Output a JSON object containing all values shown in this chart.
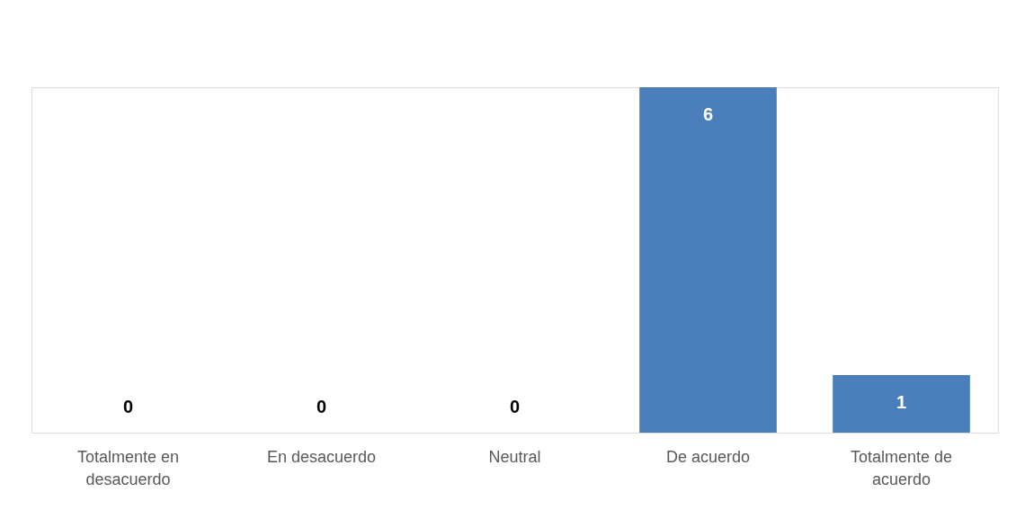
{
  "chart_data": {
    "type": "bar",
    "categories": [
      "Totalmente en desacuerdo",
      "En desacuerdo",
      "Neutral",
      "De acuerdo",
      "Totalmente de acuerdo"
    ],
    "values": [
      0,
      0,
      0,
      6,
      1
    ],
    "color": "#4a7ebb",
    "data_labels": true
  }
}
